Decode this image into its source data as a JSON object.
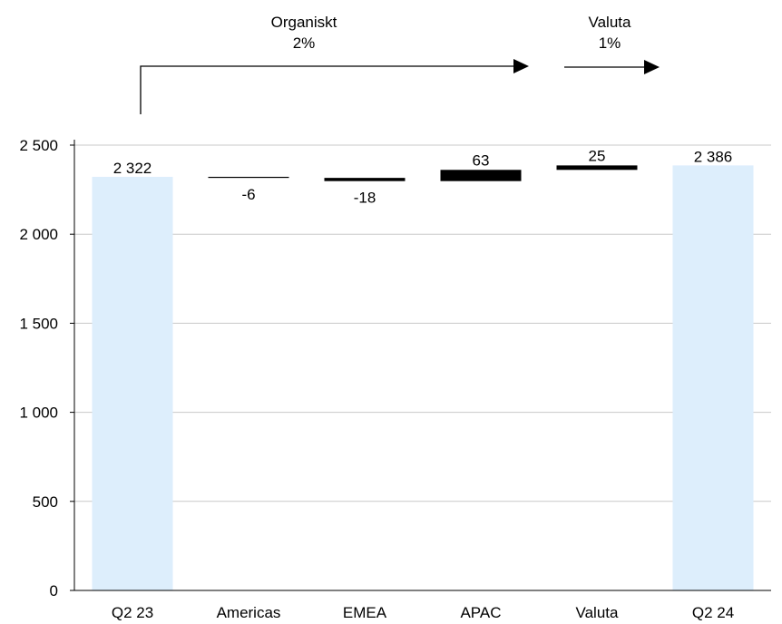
{
  "chart_data": {
    "type": "bar",
    "subtype": "waterfall",
    "title": "",
    "xlabel": "",
    "ylabel": "",
    "ylim": [
      0,
      2500
    ],
    "y_ticks": [
      0,
      500,
      1000,
      1500,
      2000,
      2500
    ],
    "y_tick_labels": [
      "0",
      "500",
      "1 000",
      "1 500",
      "2 000",
      "2 500"
    ],
    "grid": true,
    "legend": "none",
    "categories": [
      "Q2 23",
      "Americas",
      "EMEA",
      "APAC",
      "Valuta",
      "Q2 24"
    ],
    "values": [
      2322,
      -6,
      -18,
      63,
      25,
      2386
    ],
    "value_labels": [
      "2 322",
      "-6",
      "-18",
      "63",
      "25",
      "2 386"
    ],
    "bar_kinds": [
      "total",
      "delta",
      "delta",
      "delta",
      "delta",
      "total"
    ],
    "annotations": [
      {
        "line1": "Organiskt",
        "line2": "2%"
      },
      {
        "line1": "Valuta",
        "line2": "1%"
      }
    ],
    "colors": {
      "total_bar": "#ddeefc",
      "delta_bar": "#000000",
      "grid": "#c8c8c8",
      "axis": "#000000",
      "text": "#000000"
    }
  }
}
